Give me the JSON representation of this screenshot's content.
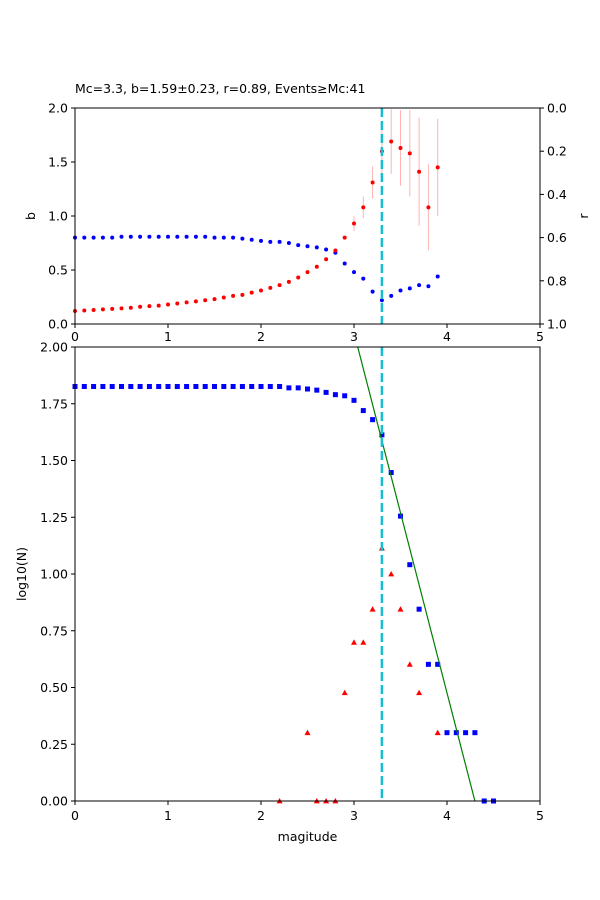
{
  "chart_data": [
    {
      "type": "scatter",
      "title": "Mc=3.3, b=1.59±0.23, r=0.89, Events≥Mc:41",
      "xlabel": "",
      "ylabel": "b",
      "ylabel_right": "r",
      "xlim": [
        0,
        5
      ],
      "ylim": [
        0,
        2
      ],
      "ylim_right": [
        1,
        0
      ],
      "x_ticks": [
        "0",
        "1",
        "2",
        "3",
        "4",
        "5"
      ],
      "y_ticks": [
        "0.0",
        "0.5",
        "1.0",
        "1.5",
        "2.0"
      ],
      "y_ticks_right": [
        "0.0",
        "0.2",
        "0.4",
        "0.6",
        "0.8",
        "1.0"
      ],
      "grid": false,
      "mc_line": 3.3,
      "colors": {
        "b": "#ff0000",
        "r": "#0000ff",
        "mc_line": "#17becf",
        "error": "#ffb3b3"
      },
      "series": [
        {
          "axis": "left",
          "x": [
            0.0,
            0.1,
            0.2,
            0.3,
            0.4,
            0.5,
            0.6,
            0.7,
            0.8,
            0.9,
            1.0,
            1.1,
            1.2,
            1.3,
            1.4,
            1.5,
            1.6,
            1.7,
            1.8,
            1.9,
            2.0,
            2.1,
            2.2,
            2.3,
            2.4,
            2.5,
            2.6,
            2.7,
            2.8,
            2.9,
            3.0,
            3.1,
            3.2,
            3.3,
            3.4,
            3.5,
            3.6,
            3.7,
            3.8,
            3.9
          ],
          "y": [
            0.12,
            0.125,
            0.13,
            0.135,
            0.14,
            0.145,
            0.15,
            0.16,
            0.165,
            0.17,
            0.18,
            0.19,
            0.2,
            0.21,
            0.22,
            0.23,
            0.245,
            0.26,
            0.27,
            0.29,
            0.31,
            0.335,
            0.36,
            0.39,
            0.43,
            0.48,
            0.53,
            0.6,
            0.68,
            0.8,
            0.93,
            1.08,
            1.31,
            1.6,
            1.69,
            1.63,
            1.58,
            1.41,
            1.08,
            1.45
          ],
          "err": [
            0.0,
            0.0,
            0.0,
            0.0,
            0.0,
            0.0,
            0.0,
            0.0,
            0.0,
            0.0,
            0.0,
            0.0,
            0.0,
            0.0,
            0.0,
            0.0,
            0.0,
            0.0,
            0.0,
            0.0,
            0.0,
            0.0,
            0.0,
            0.0,
            0.0,
            0.0,
            0.0,
            0.0,
            0.0,
            0.0,
            0.07,
            0.1,
            0.15,
            0.23,
            0.3,
            0.35,
            0.4,
            0.5,
            0.4,
            0.45
          ]
        },
        {
          "axis": "right",
          "x": [
            0.0,
            0.1,
            0.2,
            0.3,
            0.4,
            0.5,
            0.6,
            0.7,
            0.8,
            0.9,
            1.0,
            1.1,
            1.2,
            1.3,
            1.4,
            1.5,
            1.6,
            1.7,
            1.8,
            1.9,
            2.0,
            2.1,
            2.2,
            2.3,
            2.4,
            2.5,
            2.6,
            2.7,
            2.8,
            2.9,
            3.0,
            3.1,
            3.2,
            3.3,
            3.4,
            3.5,
            3.6,
            3.7,
            3.8,
            3.9
          ],
          "y": [
            0.6,
            0.6,
            0.6,
            0.6,
            0.6,
            0.596,
            0.596,
            0.596,
            0.596,
            0.596,
            0.596,
            0.596,
            0.596,
            0.596,
            0.596,
            0.6,
            0.6,
            0.6,
            0.605,
            0.61,
            0.615,
            0.62,
            0.62,
            0.625,
            0.635,
            0.64,
            0.645,
            0.655,
            0.67,
            0.72,
            0.76,
            0.79,
            0.85,
            0.89,
            0.87,
            0.845,
            0.835,
            0.82,
            0.825,
            0.78
          ]
        }
      ]
    },
    {
      "type": "scatter",
      "xlabel": "magitude",
      "ylabel": "log10(N)",
      "xlim": [
        0,
        5
      ],
      "ylim": [
        0,
        2
      ],
      "x_ticks": [
        "0",
        "1",
        "2",
        "3",
        "4",
        "5"
      ],
      "y_ticks": [
        "0.00",
        "0.25",
        "0.50",
        "0.75",
        "1.00",
        "1.25",
        "1.50",
        "1.75",
        "2.00"
      ],
      "grid": false,
      "mc_line": 3.3,
      "colors": {
        "cumulative": "#0000ff",
        "incremental": "#ff0000",
        "fit": "#008000",
        "mc_line": "#17becf"
      },
      "fit_line": {
        "x": [
          3.04,
          4.3
        ],
        "y": [
          2.0,
          0.0
        ]
      },
      "series": [
        {
          "marker": "square",
          "x": [
            0.0,
            0.1,
            0.2,
            0.3,
            0.4,
            0.5,
            0.6,
            0.7,
            0.8,
            0.9,
            1.0,
            1.1,
            1.2,
            1.3,
            1.4,
            1.5,
            1.6,
            1.7,
            1.8,
            1.9,
            2.0,
            2.1,
            2.2,
            2.3,
            2.4,
            2.5,
            2.6,
            2.7,
            2.8,
            2.9,
            3.0,
            3.1,
            3.2,
            3.3,
            3.4,
            3.5,
            3.6,
            3.7,
            3.8,
            3.9,
            4.0,
            4.1,
            4.2,
            4.3,
            4.4,
            4.5
          ],
          "y": [
            1.826,
            1.826,
            1.826,
            1.826,
            1.826,
            1.826,
            1.826,
            1.826,
            1.826,
            1.826,
            1.826,
            1.826,
            1.826,
            1.826,
            1.826,
            1.826,
            1.826,
            1.826,
            1.826,
            1.826,
            1.826,
            1.826,
            1.826,
            1.82,
            1.82,
            1.815,
            1.81,
            1.8,
            1.79,
            1.785,
            1.765,
            1.72,
            1.68,
            1.613,
            1.447,
            1.255,
            1.041,
            0.845,
            0.602,
            0.602,
            0.301,
            0.301,
            0.301,
            0.301,
            0.0,
            0.0
          ]
        },
        {
          "marker": "triangle",
          "x": [
            2.2,
            2.5,
            2.6,
            2.7,
            2.8,
            2.9,
            3.0,
            3.1,
            3.2,
            3.3,
            3.4,
            3.5,
            3.6,
            3.7,
            3.9
          ],
          "y": [
            0.0,
            0.301,
            0.0,
            0.0,
            0.0,
            0.477,
            0.699,
            0.699,
            0.845,
            1.114,
            1.0,
            0.845,
            0.602,
            0.477,
            0.301
          ]
        }
      ]
    }
  ]
}
